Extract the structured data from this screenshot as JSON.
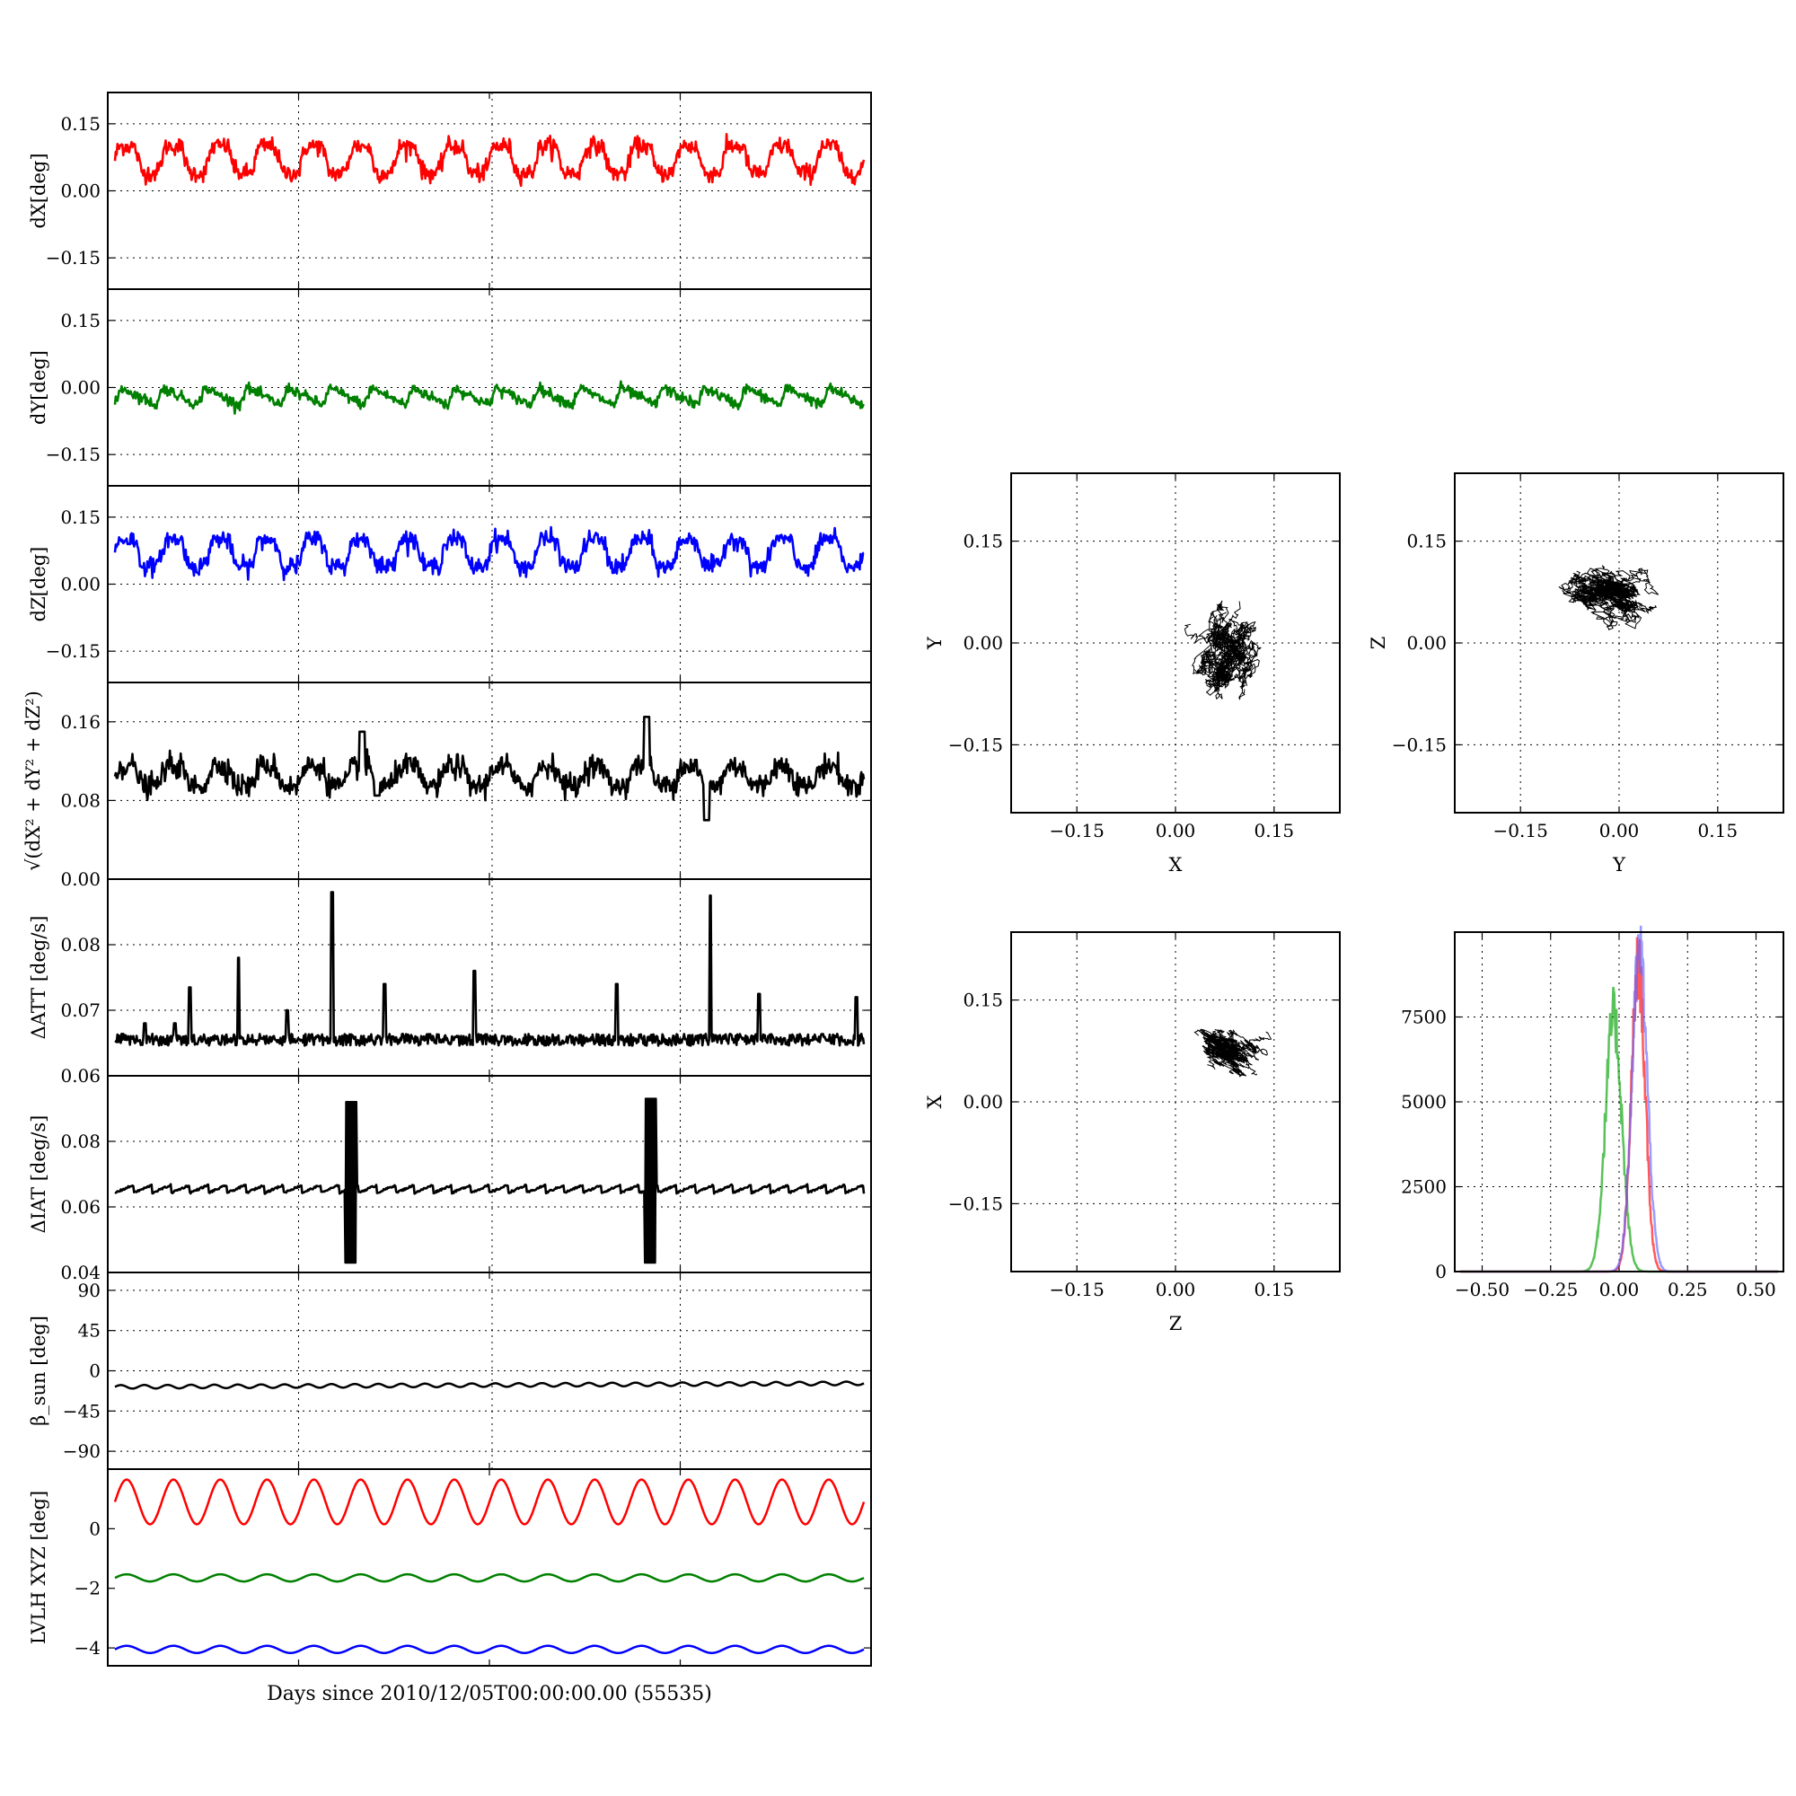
{
  "figure": {
    "xlabel": "Days since 2010/12/05T00:00:00.00 (55535)",
    "colors": {
      "red": "#ff0000",
      "green": "#008000",
      "blue": "#0000ff",
      "black": "#000000"
    }
  },
  "chart_data": [
    {
      "id": "dx",
      "type": "line",
      "ylabel": "dX[deg]",
      "ylim": [
        -0.22,
        0.22
      ],
      "yticks": [
        "0.15",
        "0.00",
        "−0.15"
      ],
      "ytick_values": [
        0.15,
        0.0,
        -0.15
      ],
      "grid": true,
      "series": [
        {
          "color": "#ff0000",
          "mean": 0.07,
          "amplitude": 0.03,
          "cycles": 16,
          "noise": 0.01
        }
      ]
    },
    {
      "id": "dy",
      "type": "line",
      "ylabel": "dY[deg]",
      "ylim": [
        -0.22,
        0.22
      ],
      "yticks": [
        "0.15",
        "0.00",
        "−0.15"
      ],
      "ytick_values": [
        0.15,
        0.0,
        -0.15
      ],
      "grid": true,
      "series": [
        {
          "color": "#008000",
          "mean": -0.02,
          "amplitude": 0.04,
          "cycles": 18,
          "noise": 0.012,
          "sawtooth": true
        }
      ]
    },
    {
      "id": "dz",
      "type": "line",
      "ylabel": "dZ[deg]",
      "ylim": [
        -0.22,
        0.22
      ],
      "yticks": [
        "0.15",
        "0.00",
        "−0.15"
      ],
      "ytick_values": [
        0.15,
        0.0,
        -0.15
      ],
      "grid": true,
      "series": [
        {
          "color": "#0000ff",
          "mean": 0.07,
          "amplitude": 0.03,
          "cycles": 16,
          "noise": 0.01
        }
      ]
    },
    {
      "id": "rss",
      "type": "line",
      "ylabel": "√(dX² + dY² + dZ²)",
      "ylim": [
        0.0,
        0.2
      ],
      "yticks": [
        "0.16",
        "0.08",
        "0.00"
      ],
      "ytick_values": [
        0.16,
        0.08,
        0.0
      ],
      "grid": true,
      "series": [
        {
          "color": "#000000",
          "mean": 0.105,
          "amplitude": 0.01,
          "cycles": 16,
          "noise": 0.006,
          "events": [
            [
              0.33,
              0.15
            ],
            [
              0.71,
              0.165
            ],
            [
              0.79,
              0.06
            ],
            [
              0.35,
              0.085
            ]
          ]
        }
      ]
    },
    {
      "id": "datt",
      "type": "line",
      "ylabel": "ΔATT [deg/s]",
      "ylim": [
        0.06,
        0.09
      ],
      "yticks": [
        "0.08",
        "0.07",
        "0.06"
      ],
      "ytick_values": [
        0.08,
        0.07,
        0.06
      ],
      "grid": true,
      "series": [
        {
          "color": "#000000",
          "base": 0.0655,
          "noise": 0.0012,
          "spikes": [
            [
              0.04,
              0.068
            ],
            [
              0.08,
              0.068
            ],
            [
              0.1,
              0.0735
            ],
            [
              0.165,
              0.078
            ],
            [
              0.23,
              0.07
            ],
            [
              0.29,
              0.088
            ],
            [
              0.36,
              0.074
            ],
            [
              0.48,
              0.076
            ],
            [
              0.67,
              0.074
            ],
            [
              0.795,
              0.0875
            ],
            [
              0.86,
              0.0725
            ],
            [
              0.99,
              0.072
            ]
          ]
        }
      ]
    },
    {
      "id": "diat",
      "type": "line",
      "ylabel": "ΔIAT [deg/s]",
      "ylim": [
        0.04,
        0.1
      ],
      "yticks": [
        "0.08",
        "0.06",
        "0.04"
      ],
      "ytick_values": [
        0.08,
        0.06,
        0.04
      ],
      "grid": true,
      "series": [
        {
          "color": "#000000",
          "base": 0.0655,
          "amplitude": 0.0012,
          "cycles": 40,
          "bursts": [
            [
              0.315,
              0.043,
              0.092
            ],
            [
              0.715,
              0.043,
              0.093
            ]
          ]
        }
      ]
    },
    {
      "id": "beta",
      "type": "line",
      "ylabel": "β_sun [deg]",
      "ylim": [
        -110,
        110
      ],
      "yticks": [
        "90",
        "45",
        "0",
        "−45",
        "−90"
      ],
      "ytick_values": [
        90,
        45,
        0,
        -45,
        -90
      ],
      "grid": true,
      "series": [
        {
          "color": "#000000",
          "mean": -18,
          "amplitude": 2,
          "cycles": 32,
          "trend": 4
        }
      ]
    },
    {
      "id": "lvlh",
      "type": "line",
      "ylabel": "LVLH XYZ [deg]",
      "ylim": [
        -4.6,
        2.0
      ],
      "yticks": [
        "0",
        "−2",
        "−4"
      ],
      "ytick_values": [
        0,
        -2,
        -4
      ],
      "grid": false,
      "series": [
        {
          "color": "#ff0000",
          "mean": 0.9,
          "amplitude": 0.75,
          "cycles": 16
        },
        {
          "color": "#008000",
          "mean": -1.65,
          "amplitude": 0.12,
          "cycles": 16
        },
        {
          "color": "#0000ff",
          "mean": -4.05,
          "amplitude": 0.12,
          "cycles": 16
        }
      ]
    },
    {
      "id": "xy",
      "type": "scatter",
      "xlabel": "X",
      "ylabel": "Y",
      "xlim": [
        -0.25,
        0.25
      ],
      "ylim": [
        -0.25,
        0.25
      ],
      "xticks": [
        "−0.15",
        "0.00",
        "0.15"
      ],
      "yticks": [
        "0.15",
        "0.00",
        "−0.15"
      ],
      "tick_values": [
        -0.15,
        0.0,
        0.15
      ],
      "grid": true,
      "cloud": {
        "cx": 0.075,
        "cy": -0.025,
        "sx": 0.028,
        "sy": 0.035,
        "corr": 0.2
      }
    },
    {
      "id": "yz",
      "type": "scatter",
      "xlabel": "Y",
      "ylabel": "Z",
      "xlim": [
        -0.25,
        0.25
      ],
      "ylim": [
        -0.25,
        0.25
      ],
      "xticks": [
        "−0.15",
        "0.00",
        "0.15"
      ],
      "yticks": [
        "0.15",
        "0.00",
        "−0.15"
      ],
      "tick_values": [
        -0.15,
        0.0,
        0.15
      ],
      "grid": true,
      "cloud": {
        "cx": -0.02,
        "cy": 0.075,
        "sx": 0.04,
        "sy": 0.025,
        "corr": -0.3
      }
    },
    {
      "id": "zx",
      "type": "scatter",
      "xlabel": "Z",
      "ylabel": "X",
      "xlim": [
        -0.25,
        0.25
      ],
      "ylim": [
        -0.25,
        0.25
      ],
      "xticks": [
        "−0.15",
        "0.00",
        "0.15"
      ],
      "yticks": [
        "0.15",
        "0.00",
        "−0.15"
      ],
      "tick_values": [
        -0.15,
        0.0,
        0.15
      ],
      "grid": true,
      "cloud": {
        "cx": 0.075,
        "cy": 0.075,
        "sx": 0.028,
        "sy": 0.02,
        "corr": -0.75
      }
    },
    {
      "id": "hist",
      "type": "line",
      "xlim": [
        -0.6,
        0.6
      ],
      "ylim": [
        0,
        10000
      ],
      "xticks": [
        "−0.50",
        "−0.25",
        "0.00",
        "0.25",
        "0.50"
      ],
      "xtick_values": [
        -0.5,
        -0.25,
        0.0,
        0.25,
        0.5
      ],
      "yticks": [
        "7500",
        "5000",
        "2500",
        "0"
      ],
      "ytick_values": [
        7500,
        5000,
        2500,
        0
      ],
      "grid": true,
      "series": [
        {
          "color": "#00a000",
          "center": -0.02,
          "width": 0.03,
          "peak": 7500
        },
        {
          "color": "#ff0000",
          "center": 0.07,
          "width": 0.025,
          "peak": 9000
        },
        {
          "color": "#6666ff",
          "center": 0.075,
          "width": 0.028,
          "peak": 9400
        }
      ]
    }
  ]
}
